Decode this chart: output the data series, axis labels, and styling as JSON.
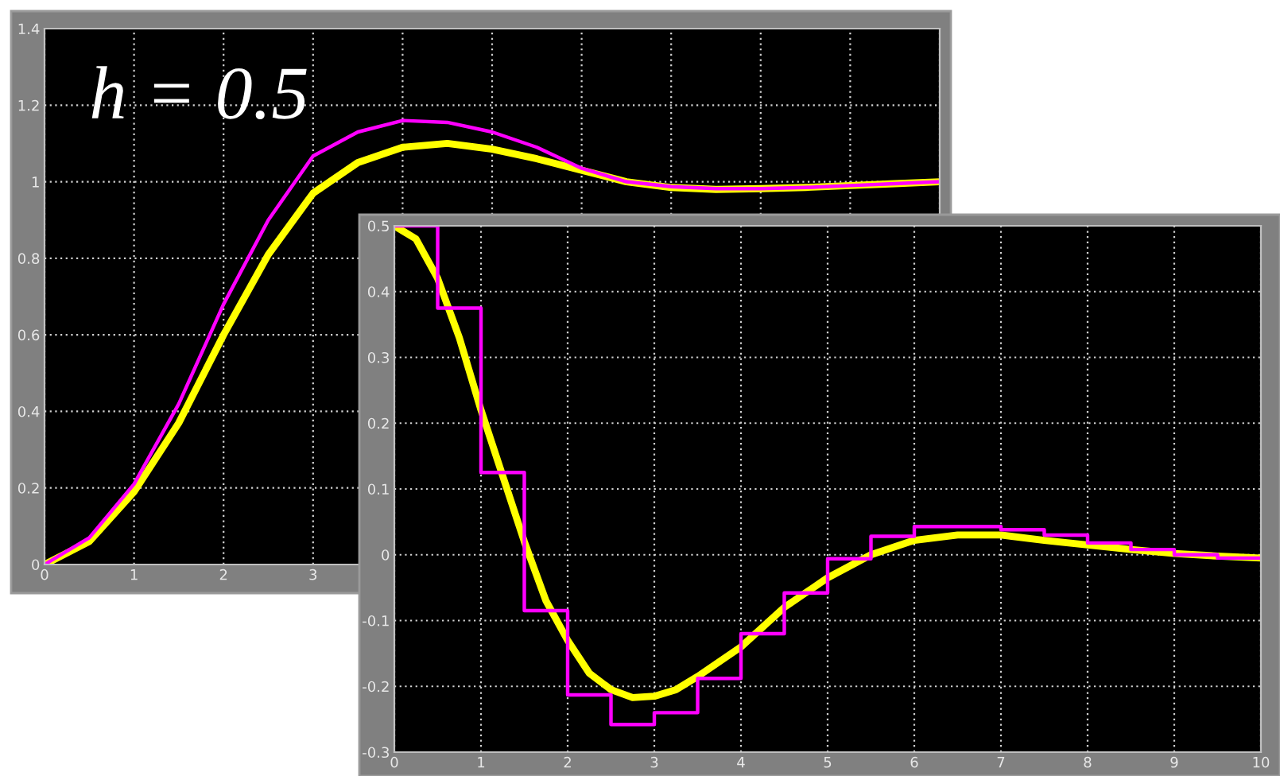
{
  "chart_data": [
    {
      "type": "line",
      "annotations": [
        "h = 0.5"
      ],
      "x": [
        0,
        0.5,
        1,
        1.5,
        2,
        2.5,
        3,
        3.5,
        4,
        4.5,
        5,
        5.5,
        6,
        6.5,
        7,
        7.5,
        8,
        8.5,
        9,
        9.5,
        10
      ],
      "series": [
        {
          "color": "#ffff00",
          "values": [
            0,
            0.06,
            0.19,
            0.37,
            0.6,
            0.81,
            0.97,
            1.05,
            1.09,
            1.1,
            1.085,
            1.06,
            1.03,
            1.0,
            0.985,
            0.98,
            0.982,
            0.985,
            0.99,
            0.995,
            1.0
          ]
        },
        {
          "color": "#ff00ff",
          "values": [
            0,
            0.07,
            0.21,
            0.42,
            0.68,
            0.9,
            1.067,
            1.13,
            1.16,
            1.155,
            1.13,
            1.09,
            1.035,
            1.0,
            0.987,
            0.982,
            0.982,
            0.985,
            0.99,
            0.995,
            1.0
          ]
        }
      ],
      "xlim": [
        0,
        10
      ],
      "xticks": [
        0,
        1,
        2,
        3,
        {
          "value": 4,
          "label": null
        },
        {
          "value": 5,
          "label": null
        },
        {
          "value": 6,
          "label": null
        },
        {
          "value": 7,
          "label": null
        },
        {
          "value": 8,
          "label": null
        },
        {
          "value": 9,
          "label": null
        },
        {
          "value": 10,
          "label": null
        }
      ],
      "ylim": [
        0,
        1.4
      ],
      "yticks": [
        0,
        0.2,
        0.4,
        0.6,
        0.8,
        1,
        1.2,
        1.4
      ],
      "grid": true
    },
    {
      "type": "step",
      "series": [
        {
          "type": "line",
          "color": "#ffff00",
          "x": [
            0,
            0.25,
            0.5,
            0.75,
            1,
            1.25,
            1.5,
            1.75,
            2,
            2.25,
            2.5,
            2.75,
            3,
            3.25,
            3.5,
            4,
            4.5,
            5,
            5.5,
            6,
            6.5,
            7,
            7.5,
            8,
            8.5,
            9,
            9.5,
            10
          ],
          "values": [
            0.5,
            0.48,
            0.42,
            0.33,
            0.22,
            0.12,
            0.02,
            -0.07,
            -0.13,
            -0.18,
            -0.205,
            -0.217,
            -0.215,
            -0.205,
            -0.185,
            -0.14,
            -0.08,
            -0.035,
            0.0,
            0.022,
            0.03,
            0.03,
            0.022,
            0.015,
            0.008,
            0.002,
            -0.002,
            -0.005
          ]
        },
        {
          "color": "#ff00ff",
          "x": [
            0,
            0.5,
            1,
            1.5,
            2,
            2.5,
            3,
            3.5,
            4,
            4.5,
            5,
            5.5,
            6,
            6.5,
            7,
            7.5,
            8,
            8.5,
            9,
            9.5,
            10
          ],
          "values": [
            0.5,
            0.375,
            0.125,
            -0.085,
            -0.213,
            -0.258,
            -0.24,
            -0.188,
            -0.12,
            -0.058,
            -0.006,
            0.028,
            0.043,
            0.043,
            0.038,
            0.03,
            0.018,
            0.008,
            0.0,
            -0.005,
            -0.005
          ]
        }
      ],
      "xlim": [
        0,
        10
      ],
      "xticks": [
        0,
        1,
        2,
        3,
        4,
        5,
        6,
        7,
        8,
        9,
        10
      ],
      "ylim": [
        -0.3,
        0.5
      ],
      "yticks": [
        -0.3,
        -0.2,
        -0.1,
        0,
        0.1,
        0.2,
        0.3,
        0.4,
        0.5
      ],
      "grid": true
    }
  ]
}
